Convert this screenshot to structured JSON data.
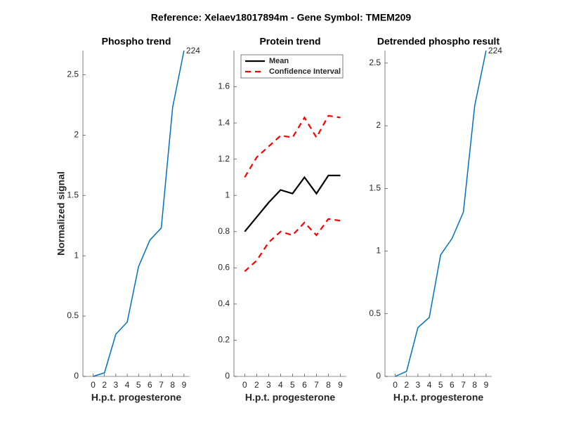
{
  "title": "Reference:  Xelaev18017894m - Gene Symbol:  TMEM209",
  "chart_data": [
    {
      "type": "line",
      "title": "Phospho trend",
      "xlabel": "H.p.t. progesterone",
      "ylabel": "Normalized signal",
      "categories": [
        "0",
        "2",
        "3",
        "4",
        "5",
        "6",
        "7",
        "8",
        "9"
      ],
      "series": [
        {
          "color": "#0072bd",
          "values": [
            0,
            0.03,
            0.35,
            0.45,
            0.91,
            1.13,
            1.23,
            2.23,
            2.7
          ]
        }
      ],
      "annotation": "224",
      "ylim": [
        0,
        2.7
      ],
      "yticks": [
        0,
        0.5,
        1,
        1.5,
        2,
        2.5
      ]
    },
    {
      "type": "band-line",
      "title": "Protein trend",
      "xlabel": "H.p.t. progesterone",
      "categories": [
        "0",
        "2",
        "3",
        "4",
        "5",
        "6",
        "7",
        "8",
        "9"
      ],
      "series": [
        {
          "name": "Mean",
          "color": "#000000",
          "values": [
            0.8,
            0.88,
            0.96,
            1.03,
            1.01,
            1.1,
            1.01,
            1.11,
            1.11
          ]
        },
        {
          "name": "Confidence Interval",
          "color": "#ff0000",
          "upper": [
            1.1,
            1.21,
            1.27,
            1.33,
            1.32,
            1.43,
            1.32,
            1.44,
            1.43
          ],
          "lower": [
            0.58,
            0.64,
            0.74,
            0.8,
            0.78,
            0.85,
            0.78,
            0.87,
            0.86
          ]
        }
      ],
      "legend": "upper-left",
      "ylim": [
        0,
        1.8
      ],
      "yticks": [
        0,
        0.2,
        0.4,
        0.6,
        0.8,
        1,
        1.2,
        1.4,
        1.6
      ]
    },
    {
      "type": "line",
      "title": "Detrended phospho result",
      "xlabel": "H.p.t. progesterone",
      "categories": [
        "0",
        "2",
        "3",
        "4",
        "5",
        "6",
        "7",
        "8",
        "9"
      ],
      "series": [
        {
          "color": "#0072bd",
          "values": [
            0,
            0.04,
            0.39,
            0.47,
            0.97,
            1.1,
            1.31,
            2.16,
            2.6
          ]
        }
      ],
      "annotation": "224",
      "ylim": [
        0,
        2.6
      ],
      "yticks": [
        0,
        0.5,
        1,
        1.5,
        2,
        2.5
      ]
    }
  ]
}
